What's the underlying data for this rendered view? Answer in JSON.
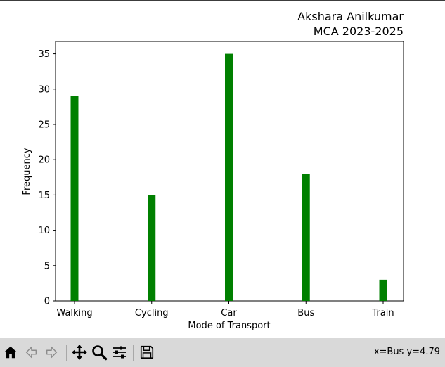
{
  "chart_data": {
    "type": "bar",
    "title_lines": [
      "Akshara Anilkumar",
      "MCA 2023-2025"
    ],
    "xlabel": "Mode of Transport",
    "ylabel": "Frequency",
    "categories": [
      "Walking",
      "Cycling",
      "Car",
      "Bus",
      "Train"
    ],
    "values": [
      29,
      15,
      35,
      18,
      3
    ],
    "ylim": [
      0,
      36.75
    ],
    "yticks": [
      0,
      5,
      10,
      15,
      20,
      25,
      30,
      35
    ],
    "bar_color": "#008000",
    "grid": false
  },
  "toolbar": {
    "buttons": [
      {
        "name": "home-icon",
        "tooltip": "Home"
      },
      {
        "name": "back-icon",
        "tooltip": "Back"
      },
      {
        "name": "forward-icon",
        "tooltip": "Forward"
      },
      {
        "name": "pan-icon",
        "tooltip": "Pan"
      },
      {
        "name": "zoom-icon",
        "tooltip": "Zoom"
      },
      {
        "name": "configure-subplots-icon",
        "tooltip": "Subplots"
      },
      {
        "name": "save-icon",
        "tooltip": "Save"
      }
    ],
    "coordinates": "x=Bus y=4.79"
  }
}
